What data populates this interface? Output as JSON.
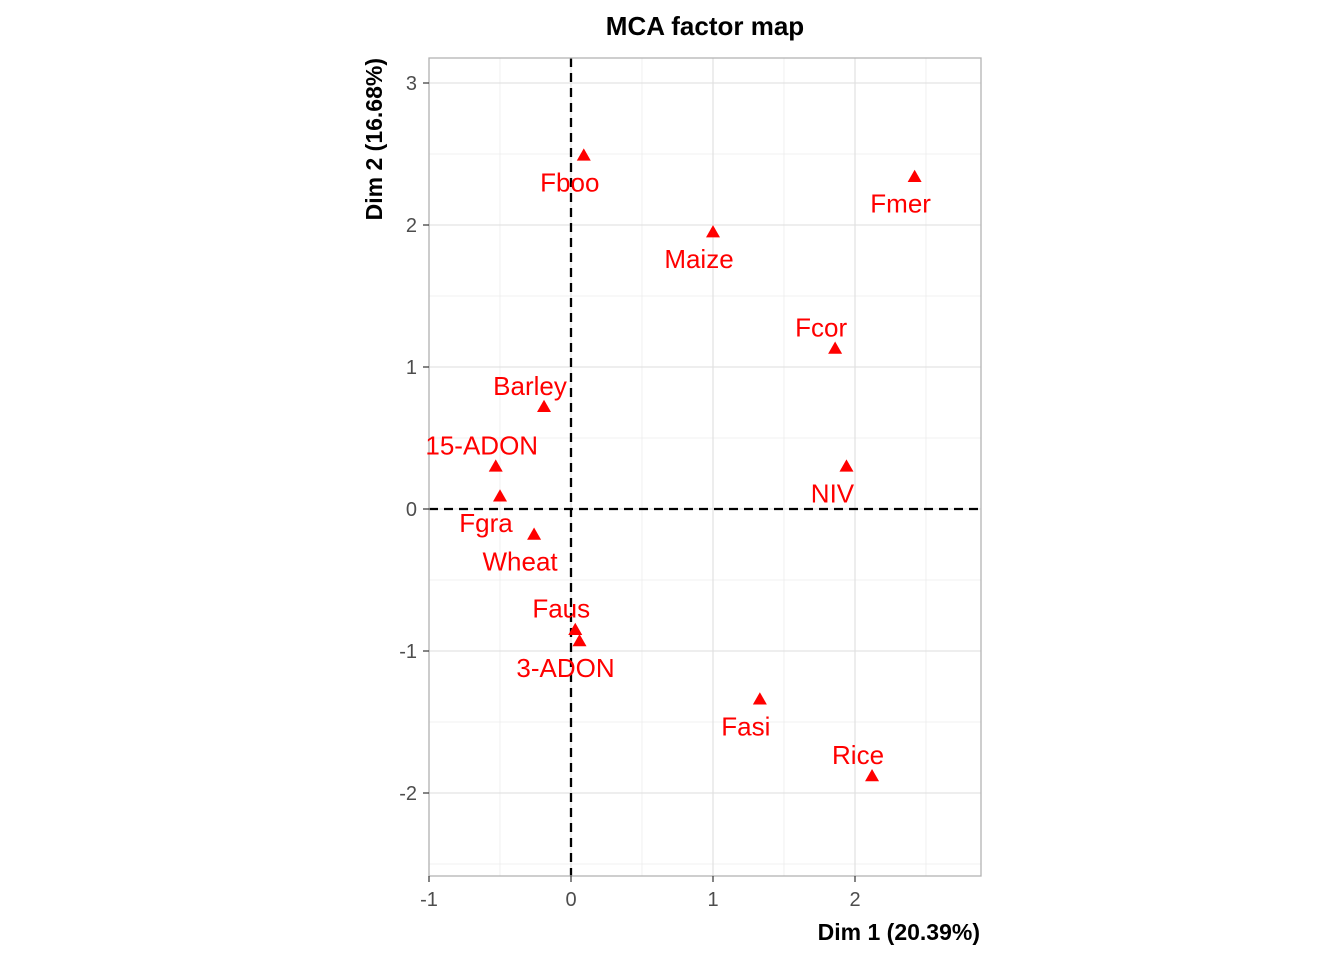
{
  "chart_data": {
    "type": "scatter",
    "title": "MCA factor map",
    "xlabel": "Dim 1 (20.39%)",
    "ylabel": "Dim 2 (16.68%)",
    "xlim": [
      -1,
      2.88
    ],
    "ylim": [
      -2.6,
      3.17
    ],
    "x_ticks": [
      -1,
      0,
      1,
      2
    ],
    "y_ticks": [
      -2,
      -1,
      0,
      1,
      2,
      3
    ],
    "reference_lines": {
      "x": 0,
      "y": 0,
      "style": "dashed"
    },
    "grid": true,
    "marker": "triangle",
    "color": "#ff0000",
    "points": [
      {
        "label": "Fboo",
        "x": 0.09,
        "y": 2.49,
        "label_pos": "below"
      },
      {
        "label": "Fmer",
        "x": 2.42,
        "y": 2.34,
        "label_pos": "below"
      },
      {
        "label": "Maize",
        "x": 1.0,
        "y": 1.95,
        "label_pos": "below"
      },
      {
        "label": "Fcor",
        "x": 1.86,
        "y": 1.13,
        "label_pos": "above"
      },
      {
        "label": "Barley",
        "x": -0.19,
        "y": 0.72,
        "label_pos": "above"
      },
      {
        "label": "15-ADON",
        "x": -0.53,
        "y": 0.3,
        "label_pos": "above"
      },
      {
        "label": "NIV",
        "x": 1.94,
        "y": 0.3,
        "label_pos": "below"
      },
      {
        "label": "Fgra",
        "x": -0.5,
        "y": 0.09,
        "label_pos": "below"
      },
      {
        "label": "Wheat",
        "x": -0.26,
        "y": -0.18,
        "label_pos": "below"
      },
      {
        "label": "Faus",
        "x": 0.03,
        "y": -0.85,
        "label_pos": "above"
      },
      {
        "label": "3-ADON",
        "x": 0.06,
        "y": -0.93,
        "label_pos": "below"
      },
      {
        "label": "Fasi",
        "x": 1.33,
        "y": -1.34,
        "label_pos": "below"
      },
      {
        "label": "Rice",
        "x": 2.12,
        "y": -1.88,
        "label_pos": "above"
      }
    ]
  }
}
